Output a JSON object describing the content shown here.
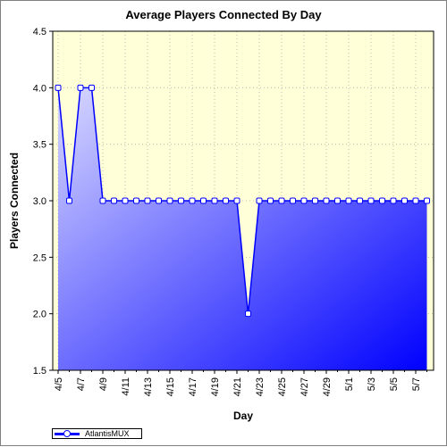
{
  "chart_data": {
    "type": "area",
    "title": "Average Players Connected By Day",
    "xlabel": "Day",
    "ylabel": "Players Connected",
    "ylim": [
      1.5,
      4.5
    ],
    "yticks": [
      "1.5",
      "2.0",
      "2.5",
      "3.0",
      "3.5",
      "4.0",
      "4.5"
    ],
    "grid": true,
    "legend_position": "bottom-left",
    "x": [
      "4/5",
      "4/6",
      "4/7",
      "4/8",
      "4/9",
      "4/10",
      "4/11",
      "4/12",
      "4/13",
      "4/14",
      "4/15",
      "4/16",
      "4/17",
      "4/18",
      "4/19",
      "4/20",
      "4/21",
      "4/22",
      "4/23",
      "4/24",
      "4/25",
      "4/26",
      "4/27",
      "4/28",
      "4/29",
      "4/30",
      "5/1",
      "5/2",
      "5/3",
      "5/4",
      "5/5",
      "5/6",
      "5/7",
      "5/8"
    ],
    "xtick_labels": [
      "4/5",
      "4/7",
      "4/9",
      "4/11",
      "4/13",
      "4/15",
      "4/17",
      "4/19",
      "4/21",
      "4/23",
      "4/25",
      "4/27",
      "4/29",
      "5/1",
      "5/3",
      "5/5",
      "5/7"
    ],
    "series": [
      {
        "name": "AtlantisMUX",
        "values": [
          4,
          3,
          4,
          4,
          3,
          3,
          3,
          3,
          3,
          3,
          3,
          3,
          3,
          3,
          3,
          3,
          3,
          2,
          3,
          3,
          3,
          3,
          3,
          3,
          3,
          3,
          3,
          3,
          3,
          3,
          3,
          3,
          3,
          3
        ]
      }
    ],
    "colors": {
      "plot_background": "#ffffd8",
      "area_light": "#d8d8ff",
      "area_dark": "#0000ff",
      "line": "#0000ff",
      "marker_fill": "#ffffff"
    }
  }
}
